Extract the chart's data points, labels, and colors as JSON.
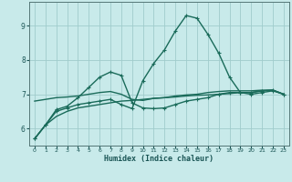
{
  "xlabel": "Humidex (Indice chaleur)",
  "bg_color": "#c8eaea",
  "grid_color": "#a0cccc",
  "line_color": "#1a6b5a",
  "xlim": [
    -0.5,
    23.5
  ],
  "ylim": [
    5.5,
    9.7
  ],
  "xticks": [
    0,
    1,
    2,
    3,
    4,
    5,
    6,
    7,
    8,
    9,
    10,
    11,
    12,
    13,
    14,
    15,
    16,
    17,
    18,
    19,
    20,
    21,
    22,
    23
  ],
  "yticks": [
    6,
    7,
    8,
    9
  ],
  "series": [
    {
      "x": [
        0,
        1,
        2,
        3,
        4,
        5,
        6,
        7,
        8,
        9,
        10,
        11,
        12,
        13,
        14,
        15,
        16,
        17,
        18,
        19,
        20,
        21,
        22,
        23
      ],
      "y": [
        5.7,
        6.1,
        6.35,
        6.5,
        6.6,
        6.65,
        6.7,
        6.75,
        6.8,
        6.82,
        6.85,
        6.88,
        6.9,
        6.95,
        6.98,
        7.0,
        7.05,
        7.08,
        7.1,
        7.1,
        7.1,
        7.12,
        7.12,
        7.0
      ],
      "marker": false,
      "lw": 1.0
    },
    {
      "x": [
        0,
        1,
        2,
        3,
        4,
        5,
        6,
        7,
        8,
        9,
        10,
        11,
        12,
        13,
        14,
        15,
        16,
        17,
        18,
        19,
        20,
        21,
        22,
        23
      ],
      "y": [
        6.8,
        6.85,
        6.9,
        6.92,
        6.95,
        7.0,
        7.05,
        7.08,
        7.0,
        6.85,
        6.82,
        6.88,
        6.9,
        6.92,
        6.95,
        6.97,
        6.98,
        7.0,
        7.02,
        7.05,
        7.05,
        7.1,
        7.12,
        7.0
      ],
      "marker": false,
      "lw": 1.0
    },
    {
      "x": [
        0,
        1,
        2,
        3,
        4,
        5,
        6,
        7,
        8,
        9,
        10,
        11,
        12,
        13,
        14,
        15,
        16,
        17,
        18,
        19,
        20,
        21,
        22,
        23
      ],
      "y": [
        5.7,
        6.1,
        6.55,
        6.65,
        6.9,
        7.2,
        7.5,
        7.65,
        7.55,
        6.75,
        6.6,
        6.58,
        6.6,
        6.7,
        6.8,
        6.85,
        6.9,
        7.0,
        7.05,
        7.05,
        7.05,
        7.1,
        7.12,
        7.0
      ],
      "marker": true,
      "lw": 1.0
    },
    {
      "x": [
        0,
        1,
        2,
        3,
        4,
        5,
        6,
        7,
        8,
        9,
        10,
        11,
        12,
        13,
        14,
        15,
        16,
        17,
        18,
        19,
        20,
        21,
        22,
        23
      ],
      "y": [
        5.7,
        6.1,
        6.5,
        6.6,
        6.7,
        6.75,
        6.8,
        6.85,
        6.7,
        6.58,
        7.4,
        7.9,
        8.3,
        8.85,
        9.3,
        9.22,
        8.75,
        8.2,
        7.5,
        7.05,
        7.0,
        7.05,
        7.1,
        7.0
      ],
      "marker": true,
      "lw": 1.0
    }
  ]
}
